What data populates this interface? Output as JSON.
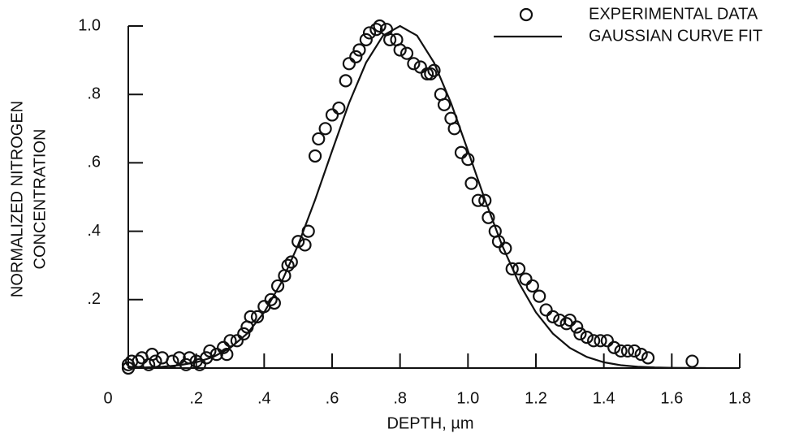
{
  "chart_data": {
    "type": "scatter",
    "xlabel": "DEPTH, µm",
    "ylabel": [
      "NORMALIZED NITROGEN",
      "CONCENTRATION"
    ],
    "xlim": [
      0,
      1.8
    ],
    "ylim": [
      0,
      1.0
    ],
    "xticks": [
      0,
      {
        "value": 0.2,
        "label": ".2"
      },
      {
        "value": 0.4,
        "label": ".4"
      },
      {
        "value": 0.6,
        "label": ".6"
      },
      {
        "value": 0.8,
        "label": ".8"
      },
      {
        "value": 1.0,
        "label": "1.0"
      },
      {
        "value": 1.2,
        "label": "1.2"
      },
      {
        "value": 1.4,
        "label": "1.4"
      },
      {
        "value": 1.6,
        "label": "1.6"
      },
      {
        "value": 1.8,
        "label": "1.8"
      }
    ],
    "yticks": [
      {
        "value": 0.2,
        "label": ".2"
      },
      {
        "value": 0.4,
        "label": ".4"
      },
      {
        "value": 0.6,
        "label": ".6"
      },
      {
        "value": 0.8,
        "label": ".8"
      },
      {
        "value": 1.0,
        "label": "1.0"
      }
    ],
    "series": [
      {
        "name": "EXPERIMENTAL DATA",
        "kind": "scatter",
        "color": "#111111",
        "x": [
          0.0,
          0.0,
          0.01,
          0.03,
          0.04,
          0.06,
          0.07,
          0.08,
          0.1,
          0.13,
          0.15,
          0.17,
          0.18,
          0.2,
          0.21,
          0.23,
          0.24,
          0.26,
          0.28,
          0.29,
          0.3,
          0.32,
          0.34,
          0.35,
          0.36,
          0.38,
          0.4,
          0.42,
          0.43,
          0.44,
          0.46,
          0.47,
          0.48,
          0.5,
          0.52,
          0.53,
          0.55,
          0.56,
          0.58,
          0.6,
          0.62,
          0.64,
          0.65,
          0.67,
          0.68,
          0.7,
          0.71,
          0.73,
          0.74,
          0.76,
          0.77,
          0.79,
          0.8,
          0.82,
          0.84,
          0.86,
          0.88,
          0.89,
          0.9,
          0.92,
          0.93,
          0.95,
          0.96,
          0.98,
          1.0,
          1.01,
          1.03,
          1.05,
          1.06,
          1.08,
          1.09,
          1.11,
          1.13,
          1.15,
          1.17,
          1.19,
          1.21,
          1.23,
          1.25,
          1.27,
          1.29,
          1.3,
          1.32,
          1.33,
          1.35,
          1.37,
          1.39,
          1.41,
          1.43,
          1.45,
          1.47,
          1.49,
          1.51,
          1.53,
          1.66
        ],
        "values": [
          0.01,
          0.0,
          0.02,
          0.02,
          0.03,
          0.01,
          0.04,
          0.02,
          0.03,
          0.02,
          0.03,
          0.01,
          0.03,
          0.02,
          0.01,
          0.03,
          0.05,
          0.04,
          0.06,
          0.04,
          0.08,
          0.08,
          0.1,
          0.12,
          0.15,
          0.15,
          0.18,
          0.2,
          0.19,
          0.24,
          0.27,
          0.3,
          0.31,
          0.37,
          0.36,
          0.4,
          0.62,
          0.67,
          0.7,
          0.74,
          0.76,
          0.84,
          0.89,
          0.91,
          0.93,
          0.96,
          0.98,
          0.99,
          1.0,
          0.99,
          0.96,
          0.96,
          0.93,
          0.92,
          0.89,
          0.88,
          0.86,
          0.86,
          0.87,
          0.8,
          0.77,
          0.73,
          0.7,
          0.63,
          0.61,
          0.54,
          0.49,
          0.49,
          0.44,
          0.4,
          0.37,
          0.35,
          0.29,
          0.29,
          0.26,
          0.24,
          0.21,
          0.17,
          0.15,
          0.14,
          0.13,
          0.14,
          0.12,
          0.1,
          0.09,
          0.08,
          0.08,
          0.08,
          0.06,
          0.05,
          0.05,
          0.05,
          0.04,
          0.03,
          0.02
        ]
      },
      {
        "name": "GAUSSIAN CURVE FIT",
        "kind": "line",
        "color": "#111111",
        "x": [
          0,
          0.05,
          0.1,
          0.15,
          0.2,
          0.25,
          0.3,
          0.35,
          0.4,
          0.45,
          0.5,
          0.55,
          0.6,
          0.65,
          0.7,
          0.75,
          0.8,
          0.85,
          0.9,
          0.95,
          1.0,
          1.05,
          1.1,
          1.15,
          1.2,
          1.25,
          1.3,
          1.35,
          1.4,
          1.45,
          1.5,
          1.55,
          1.6,
          1.65,
          1.7
        ],
        "values": [
          0.0007,
          0.0017,
          0.0039,
          0.0083,
          0.0169,
          0.0324,
          0.0588,
          0.1007,
          0.163,
          0.249,
          0.36,
          0.492,
          0.635,
          0.775,
          0.893,
          0.972,
          1,
          0.972,
          0.893,
          0.775,
          0.635,
          0.492,
          0.36,
          0.249,
          0.163,
          0.1007,
          0.0588,
          0.0324,
          0.0169,
          0.0083,
          0.0039,
          0.0017,
          0.0007,
          0.0003,
          0.0001
        ]
      }
    ]
  }
}
